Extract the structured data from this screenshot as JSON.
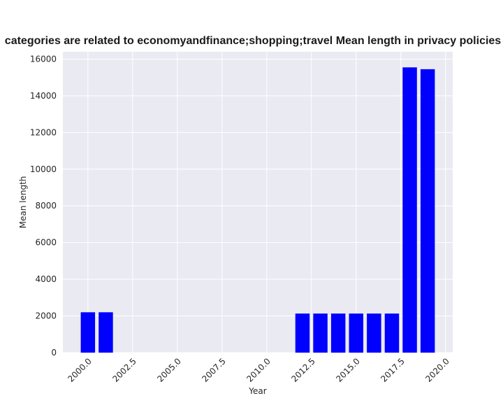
{
  "chart_data": {
    "type": "bar",
    "title": "categories are related to economyandfinance;shopping;travel Mean length in privacy policies",
    "xlabel": "Year",
    "ylabel": "Mean length",
    "x": [
      2000,
      2001,
      2012,
      2013,
      2014,
      2015,
      2016,
      2017,
      2018,
      2019
    ],
    "values": [
      2200,
      2200,
      2130,
      2130,
      2130,
      2130,
      2130,
      2130,
      15550,
      15450
    ],
    "xlim": [
      1998.6,
      2020.4
    ],
    "ylim": [
      0,
      16400
    ],
    "x_ticks": [
      "2000.0",
      "2002.5",
      "2005.0",
      "2007.5",
      "2010.0",
      "2012.5",
      "2015.0",
      "2017.5",
      "2020.0"
    ],
    "y_ticks": [
      "0",
      "2000",
      "4000",
      "6000",
      "8000",
      "10000",
      "12000",
      "14000",
      "16000"
    ],
    "grid": true,
    "colors": {
      "bar": "#0000ff",
      "plot_bg": "#eaeaf2",
      "grid": "#ffffff"
    }
  }
}
